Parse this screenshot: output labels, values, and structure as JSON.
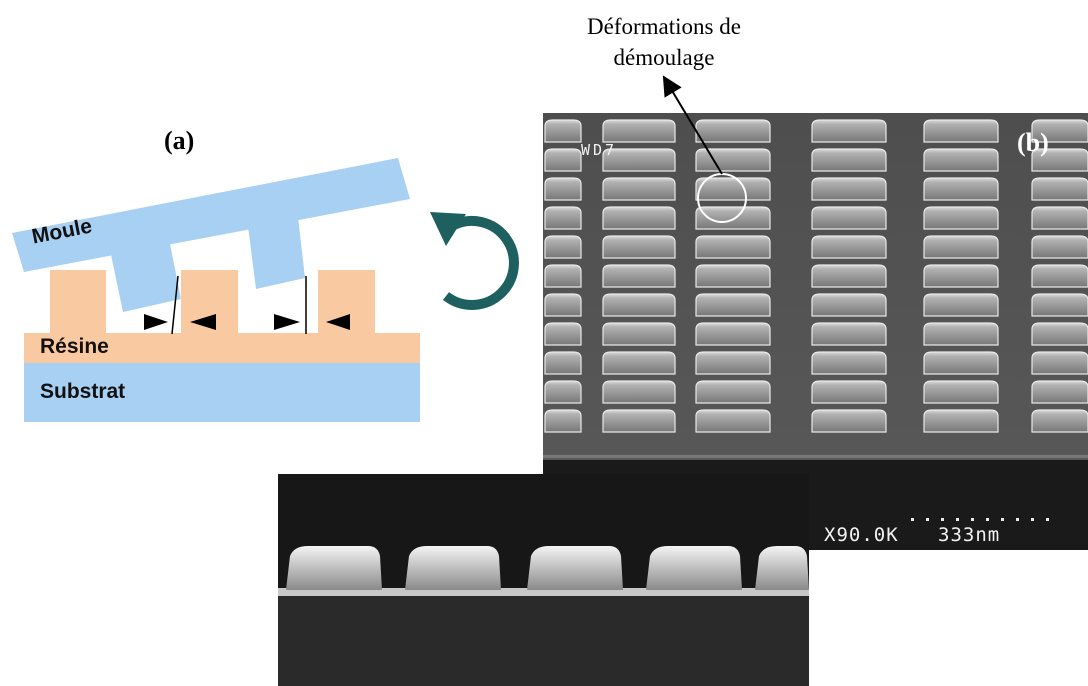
{
  "annotation": {
    "line1": "Déformations de",
    "line2": "démoulage"
  },
  "panel_a": {
    "label": "(a)",
    "mold_label": "Moule",
    "resin_label": "Résine",
    "substrate_label": "Substrat",
    "colors": {
      "mold": "#a8d0f2",
      "resin": "#f9c9a2",
      "substrate": "#a8d0f2",
      "rotation_arrow": "#1e5f5f"
    }
  },
  "panel_b": {
    "label": "(b)",
    "working_distance": "WD7",
    "magnification": "X90.0K",
    "scale_bar": "333nm"
  }
}
